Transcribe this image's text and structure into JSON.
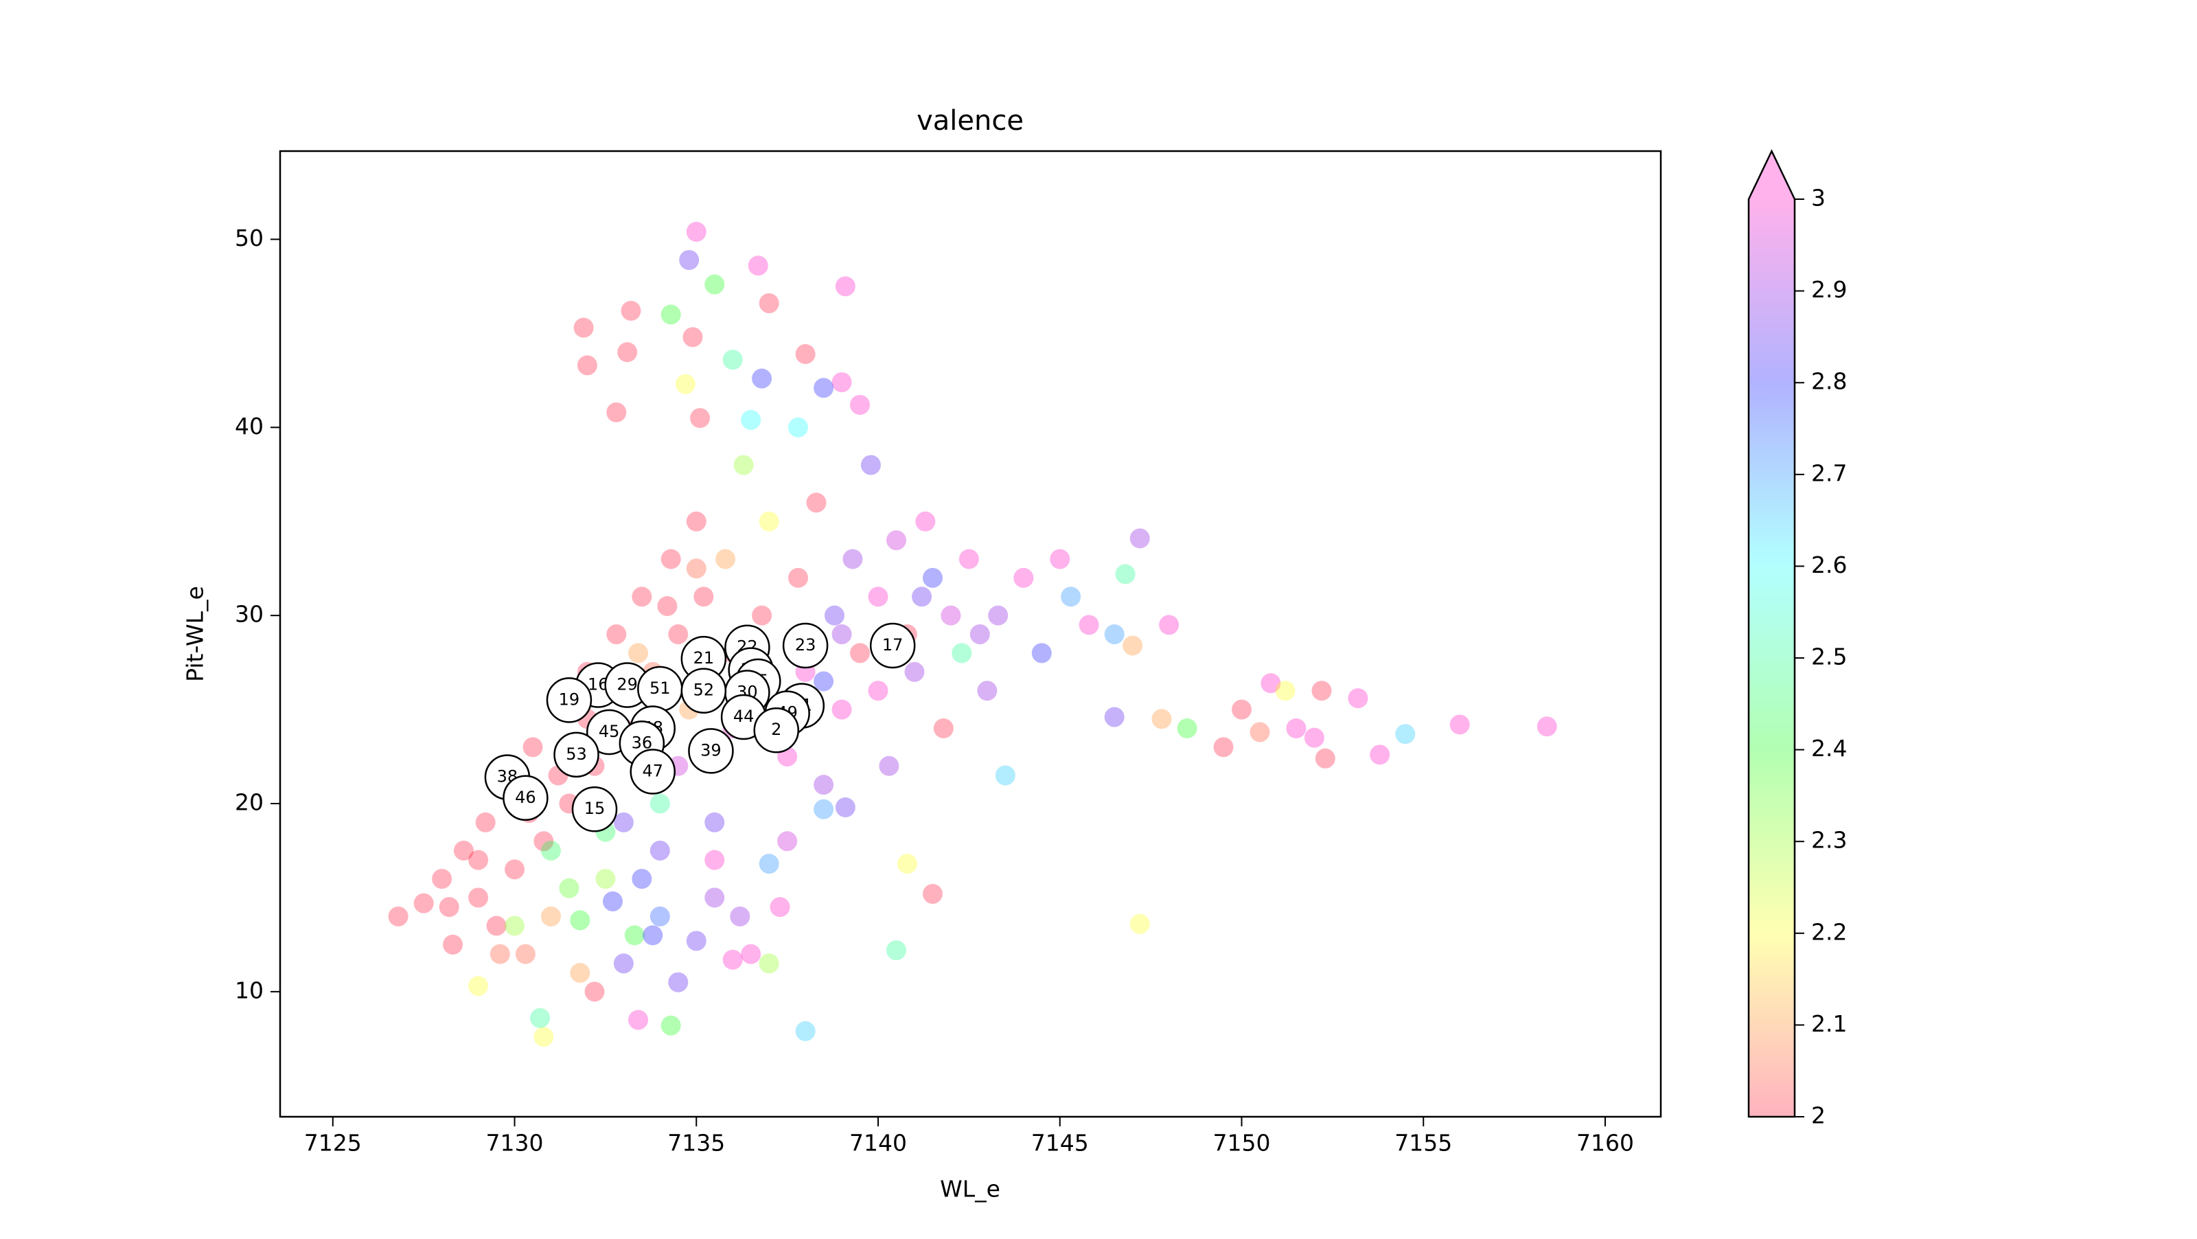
{
  "chart_data": {
    "type": "scatter",
    "title": "valence",
    "xlabel": "WL_e",
    "ylabel": "Pit-WL_e",
    "xlim": [
      7123.55,
      7161.53
    ],
    "ylim": [
      3.35,
      54.69
    ],
    "xticks": [
      7125,
      7130,
      7135,
      7140,
      7145,
      7150,
      7155,
      7160
    ],
    "yticks": [
      10,
      20,
      30,
      40,
      50
    ],
    "x": [
      7126.8,
      7127.5,
      7128,
      7128.3,
      7128.6,
      7129,
      7129.2,
      7129.5,
      7129.8,
      7130,
      7130.3,
      7130.5,
      7130.8,
      7131,
      7131.3,
      7131.5,
      7131.8,
      7132,
      7132.2,
      7132.5,
      7132.8,
      7133,
      7133.3,
      7133.5,
      7133.8,
      7134,
      7134.3,
      7134.5,
      7134.8,
      7135,
      7135.2,
      7135.5,
      7135.8,
      7136,
      7136.3,
      7136.5,
      7136.8,
      7137,
      7137.3,
      7137.5,
      7137.8,
      7138,
      7138.3,
      7138.5,
      7138.8,
      7139,
      7139.3,
      7139.5,
      7139.8,
      7140,
      7140.3,
      7140.5,
      7140.8,
      7141,
      7141.3,
      7141.5,
      7141.8,
      7142,
      7142.3,
      7142.5,
      7143,
      7143.3,
      7143.5,
      7144,
      7144.5,
      7145,
      7145.3,
      7145.8,
      7146.5,
      7146.5,
      7146.8,
      7147,
      7147.2,
      7147.2,
      7147.8,
      7148,
      7148.5,
      7149.5,
      7150,
      7150.5,
      7150.8,
      7151.2,
      7151.5,
      7152,
      7152.2,
      7152.3,
      7153.2,
      7153.8,
      7154.5,
      7156,
      7158.4,
      7135,
      7134.8,
      7136.7,
      7135.5,
      7139.1,
      7131.9,
      7133.2,
      7134.3,
      7137,
      7132,
      7133.1,
      7134.9,
      7136,
      7138,
      7134.7,
      7136.8,
      7139,
      7138.5,
      7132.8,
      7135.1,
      7136.5,
      7139.5,
      7137.8,
      7130.8,
      7130.7,
      7138,
      7134.3,
      7133.4,
      7140.5,
      7140.8,
      7141.5,
      7138.5,
      7139.1,
      7137,
      7137.3,
      7129,
      7134.5,
      7132.2,
      7136,
      7137,
      7133.8,
      7132.7,
      7131.8,
      7135,
      7134,
      7128.2,
      7129,
      7129.6,
      7130.4,
      7131.2,
      7132,
      7132.6,
      7133.4,
      7134.2,
      7135,
      7134.5,
      7135.5,
      7136,
      7136.5,
      7137.5,
      7138.5,
      7139,
      7140,
      7141.2,
      7142.8,
      7131.5,
      7132.5,
      7133,
      7133.5,
      7134,
      7135.5,
      7136.2,
      7130,
      7131,
      7133
    ],
    "values": [
      14,
      14.7,
      16,
      12.5,
      17.5,
      15,
      19,
      13.5,
      21,
      16.5,
      12,
      23,
      18,
      14,
      25,
      20,
      11,
      27,
      22,
      16,
      29,
      24,
      13,
      31,
      27,
      20,
      33,
      29,
      25,
      35,
      31,
      15,
      33,
      28,
      38,
      12,
      30,
      35,
      24,
      18,
      32,
      27,
      36,
      21,
      30,
      25,
      33,
      28,
      38,
      31,
      22,
      34,
      29,
      27,
      35,
      32,
      24,
      30,
      28,
      33,
      26,
      30,
      21.5,
      32,
      28,
      33,
      31,
      29.5,
      29,
      24.6,
      32.2,
      28.4,
      34.1,
      13.6,
      24.5,
      29.5,
      24,
      23,
      25,
      23.8,
      26.4,
      26,
      24,
      23.5,
      26,
      22.4,
      25.6,
      22.6,
      23.7,
      24.2,
      24.1,
      50.4,
      48.9,
      48.6,
      47.6,
      47.5,
      45.3,
      46.2,
      46,
      46.6,
      43.3,
      44,
      44.8,
      43.6,
      43.9,
      42.3,
      42.6,
      42.4,
      42.1,
      40.8,
      40.5,
      40.4,
      41.2,
      40,
      7.6,
      8.6,
      7.9,
      8.2,
      8.5,
      12.2,
      16.8,
      15.2,
      19.7,
      19.8,
      16.8,
      14.5,
      10.3,
      10.5,
      10,
      11.7,
      11.5,
      13,
      14.8,
      13.8,
      12.7,
      17.5,
      14.5,
      17,
      12,
      19.5,
      21.5,
      24.5,
      26,
      28,
      30.5,
      32.5,
      22,
      19,
      24,
      27,
      22.5,
      26.5,
      29,
      26,
      31,
      29,
      15.5,
      18.5,
      11.5,
      16,
      14,
      17,
      14,
      13.5,
      17.5,
      19
    ],
    "color_values": [
      2,
      2,
      2,
      2,
      2,
      2,
      2,
      2,
      2,
      2,
      2.05,
      2,
      2,
      2.1,
      2,
      2,
      2.1,
      2,
      2,
      2.3,
      2,
      2,
      2.4,
      2,
      2.05,
      2.5,
      2,
      2,
      2.1,
      2,
      2,
      2.9,
      2.1,
      2,
      2.3,
      3,
      2,
      2.2,
      3,
      2.95,
      2,
      3,
      2,
      2.9,
      2.85,
      3,
      2.9,
      2,
      2.85,
      3,
      2.9,
      2.95,
      2,
      2.9,
      3,
      2.8,
      2,
      2.95,
      2.5,
      3,
      2.9,
      2.9,
      2.65,
      3,
      2.8,
      3,
      2.7,
      3,
      2.7,
      2.85,
      2.5,
      2.1,
      2.9,
      2.2,
      2.1,
      3,
      2.4,
      2,
      2,
      2.05,
      3,
      2.2,
      3,
      3,
      2,
      2,
      3,
      3,
      2.65,
      3,
      3,
      3,
      2.85,
      3,
      2.4,
      3,
      2,
      2,
      2.4,
      2,
      2,
      2,
      2,
      2.5,
      2,
      2.2,
      2.8,
      3,
      2.8,
      2,
      2,
      2.6,
      3,
      2.6,
      2.2,
      2.5,
      2.65,
      2.4,
      3,
      2.5,
      2.2,
      2,
      2.7,
      2.85,
      2.7,
      3,
      2.2,
      2.85,
      2,
      3,
      2.3,
      2.8,
      2.8,
      2.4,
      2.85,
      2.85,
      2,
      2,
      2.05,
      2,
      2,
      2,
      2,
      2.1,
      2,
      2.05,
      2.95,
      2.85,
      3,
      2.9,
      3,
      2.8,
      2.9,
      3,
      2.85,
      2.9,
      2.35,
      2.45,
      2.85,
      2.8,
      2.75,
      3,
      2.9,
      2.3,
      2.45,
      2.85
    ],
    "colormap": [
      "#ff0029",
      "#ffff00",
      "#00ff00",
      "#00ffff",
      "#0000ff",
      "#ff00bf"
    ],
    "alpha": 0.3,
    "colorbar": {
      "clim": [
        2,
        3
      ],
      "ticks": [
        2,
        2.1,
        2.2,
        2.3,
        2.4,
        2.5,
        2.6,
        2.7,
        2.8,
        2.9,
        3
      ],
      "extend": "max"
    },
    "annotations": [
      {
        "x": 7140.4,
        "y": 28.4,
        "text": "17"
      },
      {
        "x": 7138,
        "y": 28.4,
        "text": "23"
      },
      {
        "x": 7136.4,
        "y": 28.3,
        "text": "22"
      },
      {
        "x": 7135.2,
        "y": 27.7,
        "text": "21"
      },
      {
        "x": 7136.5,
        "y": 27.1,
        "text": "18"
      },
      {
        "x": 7136.7,
        "y": 26.5,
        "text": "35"
      },
      {
        "x": 7136.4,
        "y": 25.9,
        "text": "30"
      },
      {
        "x": 7137.9,
        "y": 25.2,
        "text": "31"
      },
      {
        "x": 7132.3,
        "y": 26.3,
        "text": "16"
      },
      {
        "x": 7133.1,
        "y": 26.3,
        "text": "29"
      },
      {
        "x": 7134,
        "y": 26.1,
        "text": "51"
      },
      {
        "x": 7135.2,
        "y": 26,
        "text": "52"
      },
      {
        "x": 7131.5,
        "y": 25.5,
        "text": "19"
      },
      {
        "x": 7136.3,
        "y": 24.6,
        "text": "44"
      },
      {
        "x": 7137.5,
        "y": 24.8,
        "text": "49"
      },
      {
        "x": 7137.2,
        "y": 23.9,
        "text": "2"
      },
      {
        "x": 7133.8,
        "y": 24,
        "text": "48"
      },
      {
        "x": 7132.6,
        "y": 23.8,
        "text": "45"
      },
      {
        "x": 7133.5,
        "y": 23.2,
        "text": "36"
      },
      {
        "x": 7135.4,
        "y": 22.8,
        "text": "39"
      },
      {
        "x": 7131.7,
        "y": 22.6,
        "text": "53"
      },
      {
        "x": 7133.8,
        "y": 21.7,
        "text": "47"
      },
      {
        "x": 7129.8,
        "y": 21.4,
        "text": "38"
      },
      {
        "x": 7130.3,
        "y": 20.3,
        "text": "46"
      },
      {
        "x": 7132.2,
        "y": 19.7,
        "text": "15"
      }
    ]
  }
}
